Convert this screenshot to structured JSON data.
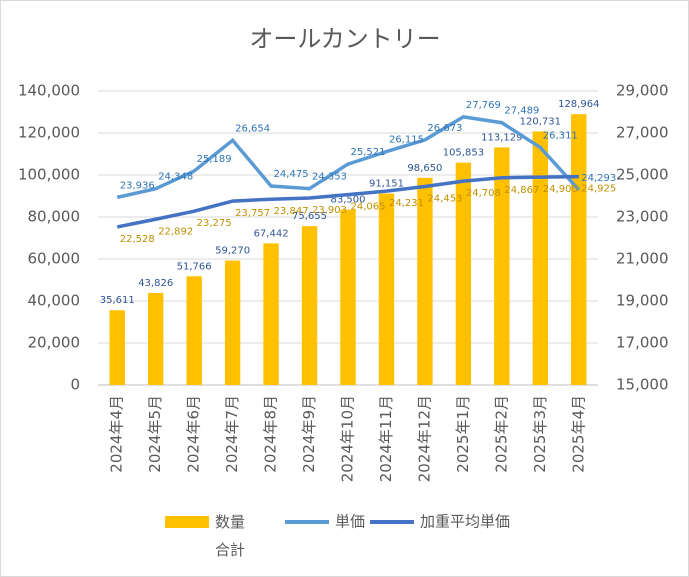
{
  "chart_data": {
    "type": "bar-line",
    "title": "オールカントリー",
    "categories": [
      "2024年4月",
      "2024年5月",
      "2024年6月",
      "2024年7月",
      "2024年8月",
      "2024年9月",
      "2024年10月",
      "2024年11月",
      "2024年12月",
      "2025年1月",
      "2025年2月",
      "2025年3月",
      "2025年4月"
    ],
    "series": [
      {
        "name": "数量合計",
        "type": "bar",
        "color": "#ffc000",
        "axis": "y",
        "values": [
          35611,
          43826,
          51766,
          59270,
          67442,
          75655,
          83500,
          91151,
          98650,
          105853,
          113129,
          120731,
          128964
        ],
        "value_labels": [
          "35,611",
          "43,826",
          "51,766",
          "59,270",
          "67,442",
          "75,655",
          "83,500",
          "91,151",
          "98,650",
          "105,853",
          "113,129",
          "120,731",
          "128,964"
        ]
      },
      {
        "name": "単価",
        "type": "line",
        "color": "#5b9bd5",
        "axis": "y2",
        "values": [
          23936,
          24348,
          25189,
          26654,
          24475,
          24353,
          25521,
          26115,
          26673,
          27769,
          27489,
          26311,
          24293
        ],
        "value_labels": [
          "23,936",
          "24,348",
          "25,189",
          "26,654",
          "24,475",
          "24,353",
          "25,521",
          "26,115",
          "26,673",
          "27,769",
          "27,489",
          "26,311",
          "24,293"
        ]
      },
      {
        "name": "加重平均単価",
        "type": "line",
        "color": "#4472c4",
        "axis": "y2",
        "values": [
          22528,
          22892,
          23275,
          23757,
          23847,
          23903,
          24065,
          24231,
          24453,
          24708,
          24867,
          24900,
          24925
        ],
        "value_labels": [
          "22,528",
          "22,892",
          "23,275",
          "23,757",
          "23,847",
          "23,903",
          "24,065",
          "24,231",
          "24,453",
          "24,708",
          "24,867",
          "24,900",
          "24,925"
        ]
      }
    ],
    "ylim": [
      0,
      140000
    ],
    "yticks": [
      0,
      {
        "value": 20000,
        "label": "20,000"
      },
      {
        "value": 40000,
        "label": "40,000"
      },
      {
        "value": 60000,
        "label": "60,000"
      },
      {
        "value": 80000,
        "label": "80,000"
      },
      {
        "value": 100000,
        "label": "100,000"
      },
      {
        "value": 120000,
        "label": "120,000"
      },
      {
        "value": 140000,
        "label": "140,000"
      }
    ],
    "y2lim": [
      15000,
      29000
    ],
    "y2ticks": [
      {
        "value": 15000,
        "label": "15,000"
      },
      {
        "value": 17000,
        "label": "17,000"
      },
      {
        "value": 19000,
        "label": "19,000"
      },
      {
        "value": 21000,
        "label": "21,000"
      },
      {
        "value": 23000,
        "label": "23,000"
      },
      {
        "value": 25000,
        "label": "25,000"
      },
      {
        "value": 27000,
        "label": "27,000"
      },
      {
        "value": 29000,
        "label": "29,000"
      }
    ],
    "legend": "bottom"
  }
}
